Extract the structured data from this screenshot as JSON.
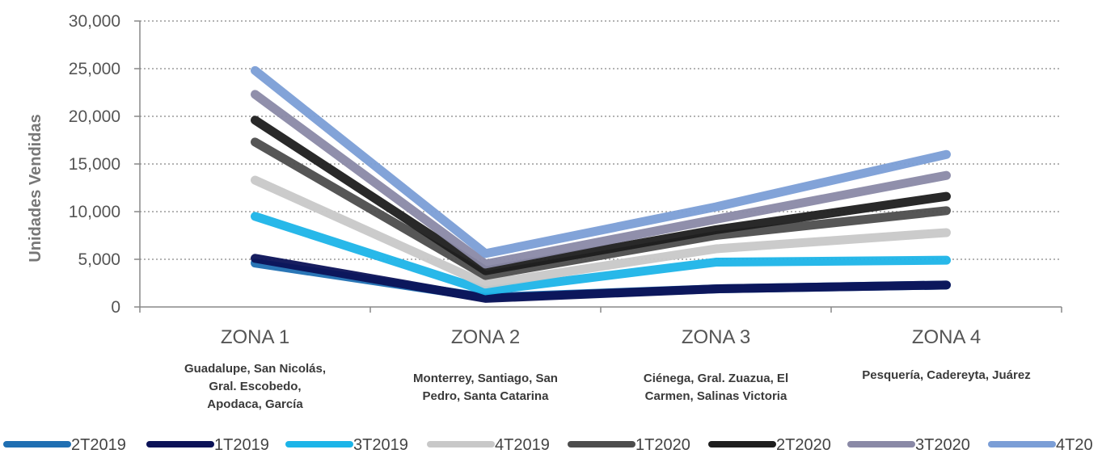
{
  "chart_data": {
    "type": "line",
    "ylabel": "Unidades Vendidas",
    "ylim": [
      0,
      30000
    ],
    "yticks": [
      "0",
      "5,000",
      "10,000",
      "15,000",
      "20,000",
      "25,000",
      "30,000"
    ],
    "grid": true,
    "legend_position": "bottom",
    "categories": [
      "ZONA 1",
      "ZONA 2",
      "ZONA 3",
      "ZONA 4"
    ],
    "category_details": [
      [
        "Guadalupe, San Nicolás,",
        "Gral. Escobedo,",
        "Apodaca, García"
      ],
      [
        "Monterrey, Santiago, San",
        "Pedro, Santa Catarina"
      ],
      [
        "Ciénega, Gral. Zuazua, El",
        "Carmen, Salinas Victoria"
      ],
      [
        "Pesquería, Cadereyta, Juárez"
      ]
    ],
    "series": [
      {
        "name": "2T2019",
        "color": "#1f6fb2",
        "values": [
          4600,
          1000,
          1900,
          2300
        ]
      },
      {
        "name": "1T2019",
        "color": "#0b1257",
        "values": [
          5100,
          900,
          1900,
          2300
        ]
      },
      {
        "name": "3T2019",
        "color": "#1cb4e8",
        "values": [
          9500,
          1700,
          4700,
          4900
        ]
      },
      {
        "name": "4T2019",
        "color": "#c8c8c8",
        "values": [
          13300,
          2400,
          6100,
          7800
        ]
      },
      {
        "name": "1T2020",
        "color": "#4d4d4d",
        "values": [
          17300,
          3300,
          7500,
          10100
        ]
      },
      {
        "name": "2T2020",
        "color": "#1e1e1e",
        "values": [
          19600,
          3800,
          8100,
          11600
        ]
      },
      {
        "name": "3T2020",
        "color": "#8a89a6",
        "values": [
          22300,
          4500,
          9200,
          13800
        ]
      },
      {
        "name": "4T20",
        "color": "#7b9ed6",
        "values": [
          24800,
          5600,
          10500,
          16000
        ]
      }
    ]
  }
}
